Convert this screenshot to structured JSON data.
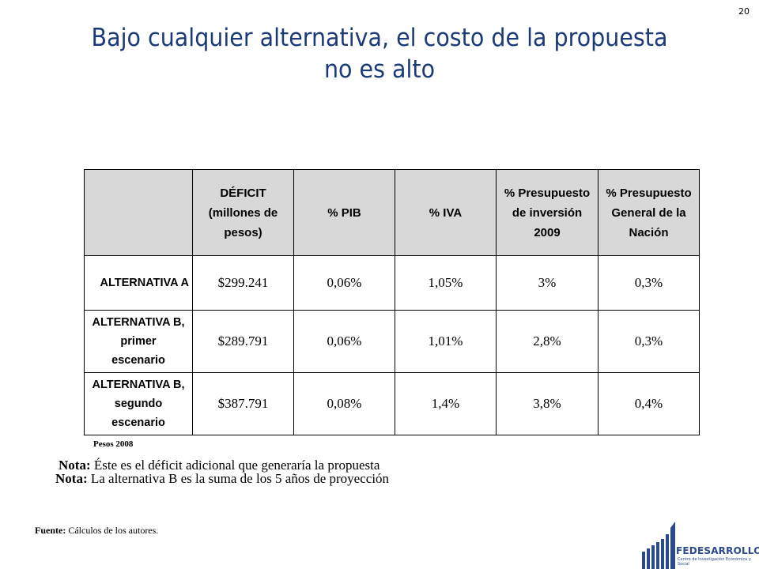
{
  "slide": {
    "page_number": "20",
    "title_line1": "Bajo cualquier alternativa, el costo de la propuesta",
    "title_line2": "no es alto"
  },
  "table": {
    "headers": [
      "",
      "DÉFICIT\n(millones de\npesos)",
      "% PIB",
      "% IVA",
      "% Presupuesto\nde inversión\n2009",
      "% Presupuesto\nGeneral de la\nNación"
    ],
    "rows": [
      {
        "label": "ALTERNATIVA A",
        "values": [
          "$299.241",
          "0,06%",
          "1,05%",
          "3%",
          "0,3%"
        ]
      },
      {
        "label": "ALTERNATIVA B,\nprimer\nescenario",
        "values": [
          "$289.791",
          "0,06%",
          "1,01%",
          "2,8%",
          "0,3%"
        ]
      },
      {
        "label": "ALTERNATIVA B,\nsegundo\nescenario",
        "values": [
          "$387.791",
          "0,08%",
          "1,4%",
          "3,8%",
          "0,4%"
        ]
      }
    ]
  },
  "units_note": "Pesos 2008",
  "notes": [
    {
      "prefix": "Nota:",
      "text": " Éste es el déficit adicional que generaría la propuesta"
    },
    {
      "prefix": "Nota:",
      "text": " La alternativa B es la suma de los 5 años de proyección"
    }
  ],
  "source": {
    "prefix": "Fuente:",
    "text": " Cálculos de los autores."
  },
  "logo": {
    "name": "FEDESARROLLO",
    "subtitle": "Centro de Investigación Económica y Social",
    "color": "#2a4a8a"
  }
}
